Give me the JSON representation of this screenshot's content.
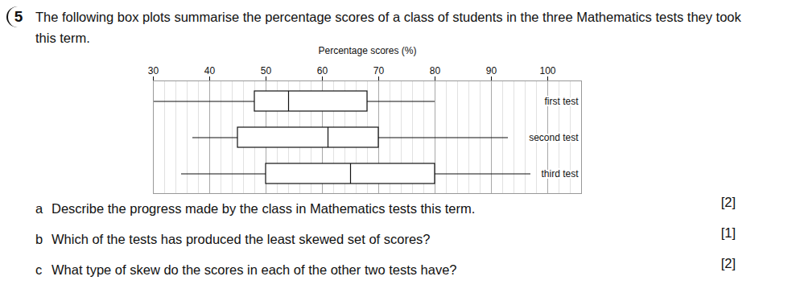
{
  "question": {
    "number": "5",
    "text": "The following box plots summarise the percentage scores of a class of students in the three Mathematics tests they took this term."
  },
  "chart_data": {
    "type": "boxplot",
    "orientation": "horizontal",
    "grid": true,
    "xlabel": "Percentage scores (%)",
    "categories": [
      "first test",
      "second test",
      "third test"
    ],
    "min": [
      30,
      37,
      35
    ],
    "q1": [
      48,
      45,
      50
    ],
    "median": [
      54,
      61,
      65
    ],
    "q3": [
      68,
      70,
      80
    ],
    "max": [
      80,
      93,
      97
    ],
    "xlim": [
      30,
      106
    ],
    "xticks": [
      30,
      40,
      50,
      60,
      70,
      80,
      90,
      100
    ]
  },
  "parts": [
    {
      "label": "a",
      "text": "Describe the progress made by the class in Mathematics tests this term.",
      "marks": "[2]"
    },
    {
      "label": "b",
      "text": "Which of the tests has produced the least skewed set of scores?",
      "marks": "[1]"
    },
    {
      "label": "c",
      "text": "What type of skew do the scores in each of the other two tests have?",
      "marks": "[2]"
    }
  ]
}
